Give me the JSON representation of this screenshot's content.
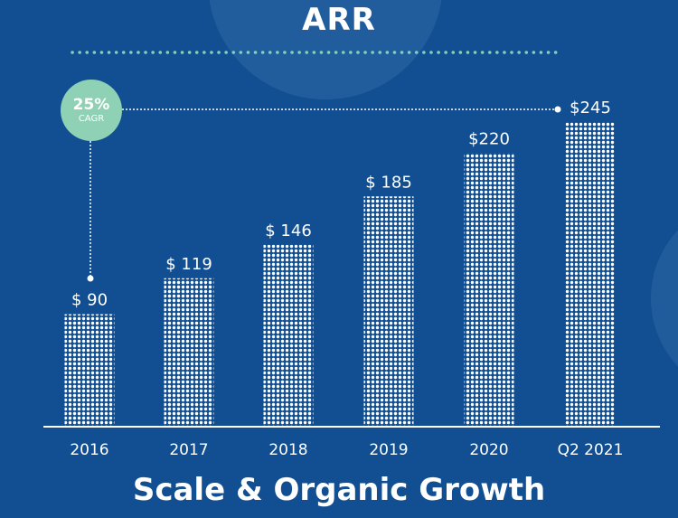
{
  "header": {
    "title": "ARR"
  },
  "footer": {
    "title": "Scale & Organic Growth"
  },
  "cagr": {
    "value": "25%",
    "label": "CAGR"
  },
  "colors": {
    "background": "#114f92",
    "bar_dots": "#ffffff",
    "badge": "#8fd1b4",
    "divider_dots": "#7fd3b8",
    "decor_circle": "#2f6aa6"
  },
  "chart_data": {
    "type": "bar",
    "categories": [
      "2016",
      "2017",
      "2018",
      "2019",
      "2020",
      "Q2 2021"
    ],
    "values": [
      90,
      119,
      146,
      185,
      220,
      245
    ],
    "value_labels": [
      "$ 90",
      "$ 119",
      "$ 146",
      "$ 185",
      "$220",
      "$245"
    ],
    "ylim": [
      0,
      245
    ],
    "grid": false,
    "legend": "none"
  }
}
